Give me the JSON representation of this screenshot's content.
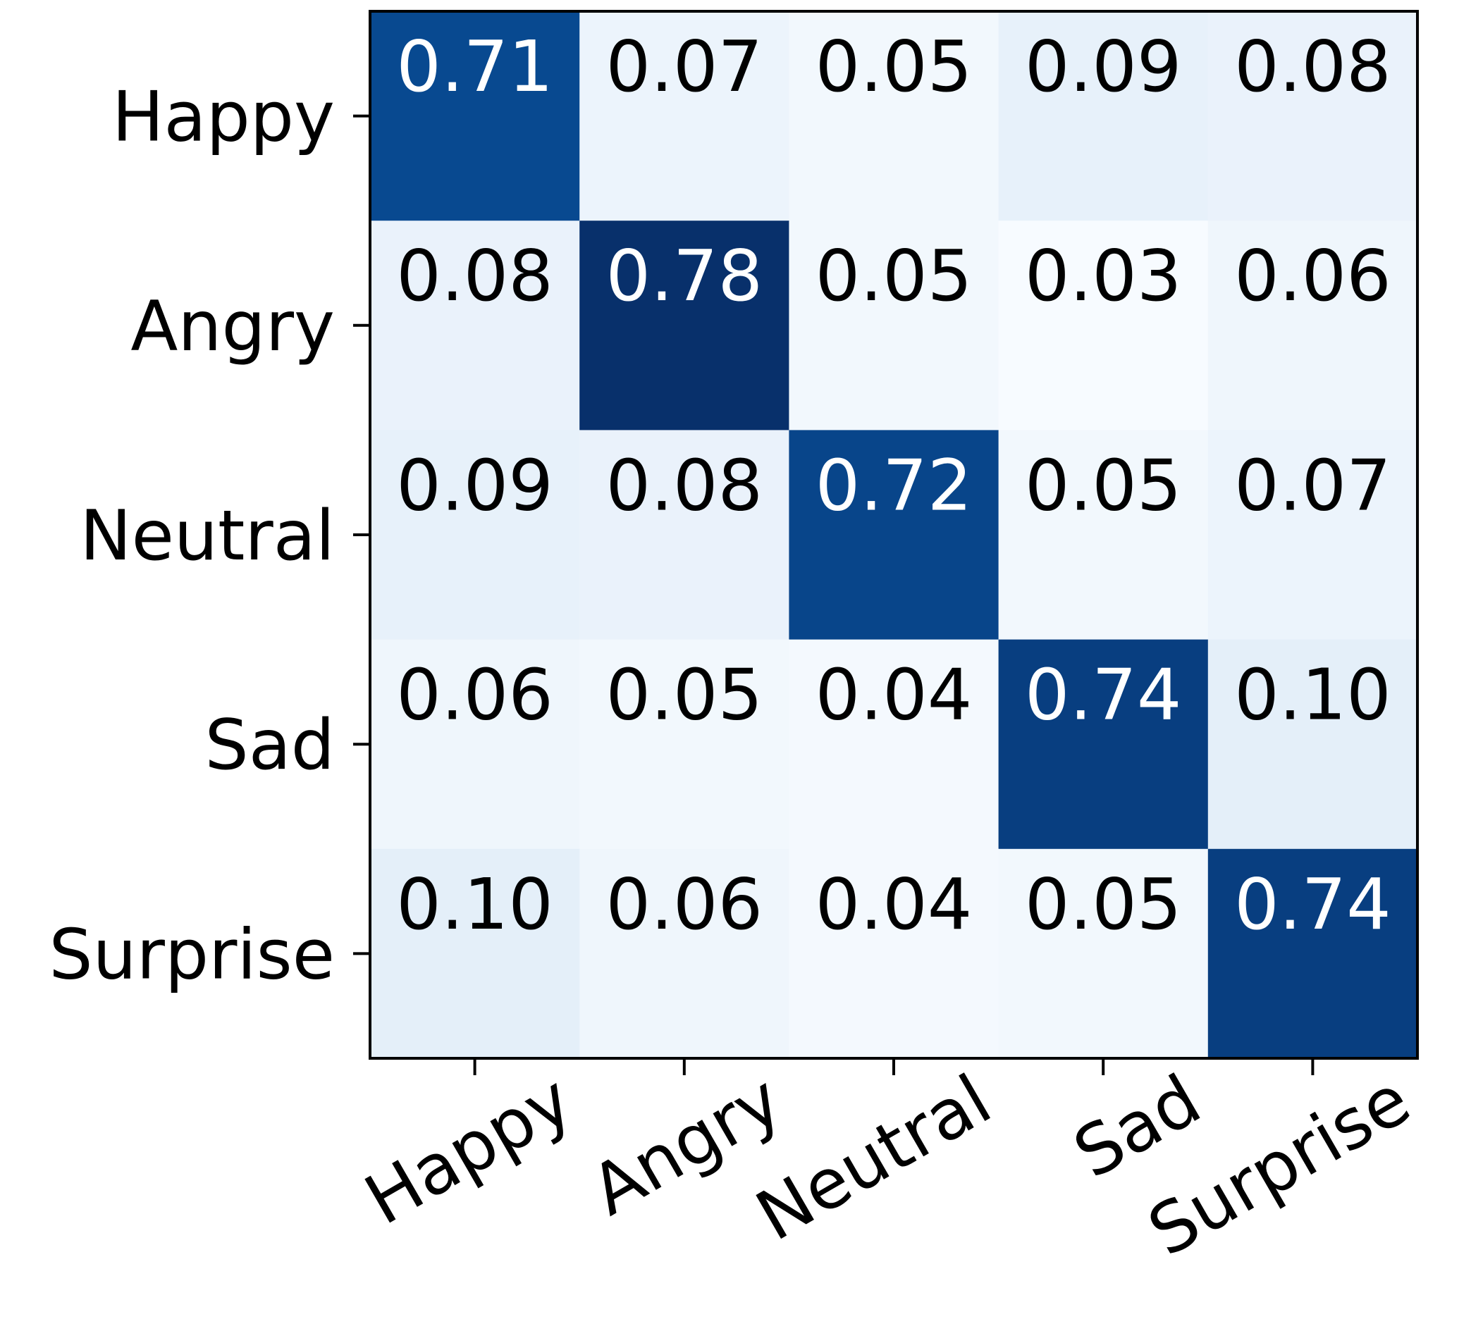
{
  "chart_data": {
    "type": "heatmap",
    "title": "",
    "xlabel": "",
    "ylabel": "",
    "row_labels": [
      "Happy",
      "Angry",
      "Neutral",
      "Sad",
      "Surprise"
    ],
    "col_labels": [
      "Happy",
      "Angry",
      "Neutral",
      "Sad",
      "Surprise"
    ],
    "values": [
      [
        0.71,
        0.07,
        0.05,
        0.09,
        0.08
      ],
      [
        0.08,
        0.78,
        0.05,
        0.03,
        0.06
      ],
      [
        0.09,
        0.08,
        0.72,
        0.05,
        0.07
      ],
      [
        0.06,
        0.05,
        0.04,
        0.74,
        0.1
      ],
      [
        0.1,
        0.06,
        0.04,
        0.05,
        0.74
      ]
    ],
    "value_labels": [
      [
        "0.71",
        "0.07",
        "0.05",
        "0.09",
        "0.08"
      ],
      [
        "0.08",
        "0.78",
        "0.05",
        "0.03",
        "0.06"
      ],
      [
        "0.09",
        "0.08",
        "0.72",
        "0.05",
        "0.07"
      ],
      [
        "0.06",
        "0.05",
        "0.04",
        "0.74",
        "0.10"
      ],
      [
        "0.10",
        "0.06",
        "0.04",
        "0.05",
        "0.74"
      ]
    ],
    "colormap": "Blues",
    "grid": false,
    "legend": "none",
    "x_tick_rotation_deg": 30,
    "colors": {
      "light_text": "#ffffff",
      "dark_text": "#000000",
      "frame": "#000000"
    }
  }
}
